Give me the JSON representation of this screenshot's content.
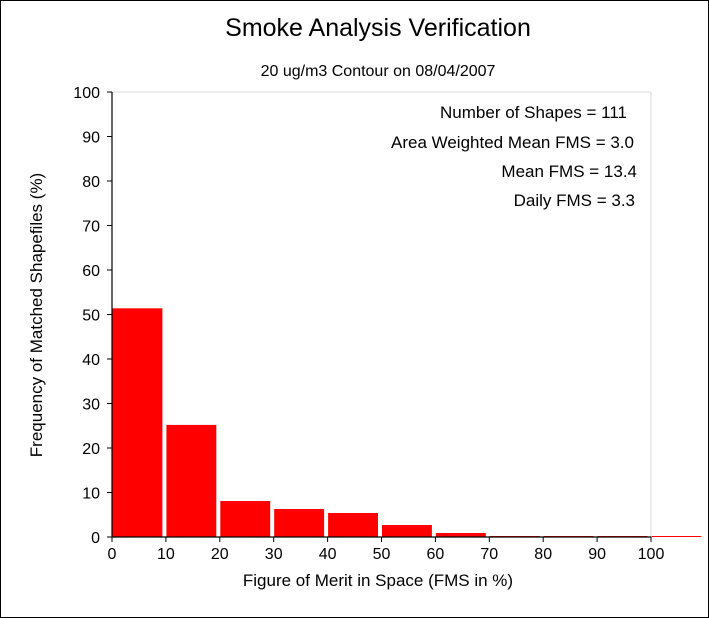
{
  "chart_data": {
    "type": "bar",
    "title": "Smoke Analysis Verification",
    "subtitle": "20 ug/m3 Contour on 08/04/2007",
    "xlabel": "Figure of Merit in Space (FMS in %)",
    "ylabel": "Frequency of Matched Shapefiles (%)",
    "xlim": [
      0,
      100
    ],
    "ylim": [
      0,
      100
    ],
    "xticks": [
      "0",
      "10",
      "20",
      "30",
      "40",
      "50",
      "60",
      "70",
      "80",
      "90",
      "100"
    ],
    "yticks": [
      "0",
      "10",
      "20",
      "30",
      "40",
      "50",
      "60",
      "70",
      "80",
      "90",
      "100"
    ],
    "bin_width": 10,
    "bins": [
      0,
      10,
      20,
      30,
      40,
      50,
      60,
      70,
      80,
      90,
      100
    ],
    "values": [
      51.4,
      25.2,
      8.1,
      6.3,
      5.4,
      2.7,
      0.9,
      0,
      0,
      0,
      0
    ],
    "bar_color": "#ff0000",
    "grid": false,
    "annotations": [
      "Number of Shapes = 111",
      "Area Weighted Mean FMS = 3.0",
      "Mean FMS = 13.4",
      "Daily FMS = 3.3"
    ]
  }
}
